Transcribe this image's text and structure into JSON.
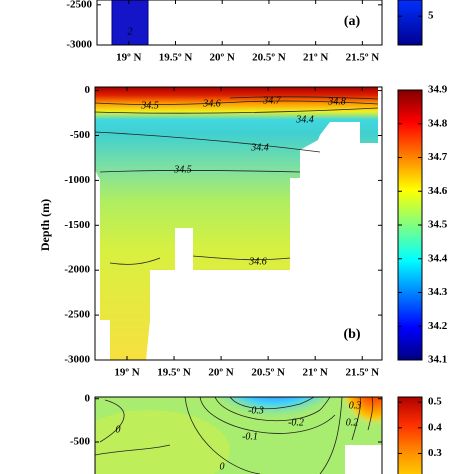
{
  "chart_data": [
    {
      "type": "contour",
      "panel_label": "(a)",
      "xlim": [
        18.66,
        21.71
      ],
      "xticks": [
        {
          "value": 19,
          "label": "19º N"
        },
        {
          "value": 19.5,
          "label": "19.5º N"
        },
        {
          "value": 20,
          "label": "20º N"
        },
        {
          "value": 20.5,
          "label": "20.5º N"
        },
        {
          "value": 21,
          "label": "21º N"
        },
        {
          "value": 21.5,
          "label": "21.5º N"
        }
      ],
      "ylim": [
        -3000,
        -2440
      ],
      "yticks": [
        -3000,
        -2500
      ],
      "contour_labels": [
        2
      ],
      "colorbar": {
        "clim": [
          0,
          7.8
        ],
        "ticks": [
          5
        ]
      }
    },
    {
      "type": "contour",
      "panel_label": "(b)",
      "y_label": "Depth (m)",
      "xlim": [
        18.66,
        21.71
      ],
      "xticks": [
        {
          "value": 19,
          "label": "19º N"
        },
        {
          "value": 19.5,
          "label": "19.5º N"
        },
        {
          "value": 20,
          "label": "20º N"
        },
        {
          "value": 20.5,
          "label": "20.5º N"
        },
        {
          "value": 21,
          "label": "21º N"
        },
        {
          "value": 21.5,
          "label": "21.5º N"
        }
      ],
      "ylim": [
        -3000,
        40
      ],
      "yticks": [
        -3000,
        -2500,
        -2000,
        -1500,
        -1000,
        -500,
        0
      ],
      "contour_labels": [
        34.5,
        34.6,
        34.7,
        34.8,
        34.4,
        34.4,
        34.5,
        34.6
      ],
      "colorbar": {
        "clim": [
          34.1,
          34.9
        ],
        "ticks": [
          34.1,
          34.2,
          34.3,
          34.4,
          34.5,
          34.6,
          34.7,
          34.8,
          34.9
        ]
      }
    },
    {
      "type": "contour",
      "xlim": [
        18.66,
        21.71
      ],
      "ylim": [
        -870,
        20
      ],
      "yticks": [
        -500,
        0
      ],
      "contour_labels": [
        0,
        -0.3,
        -0.2,
        -0.1,
        0,
        0.3,
        0.2
      ],
      "colorbar": {
        "clim": [
          0.22,
          0.52
        ],
        "ticks": [
          0.3,
          0.4,
          0.5
        ]
      }
    }
  ]
}
